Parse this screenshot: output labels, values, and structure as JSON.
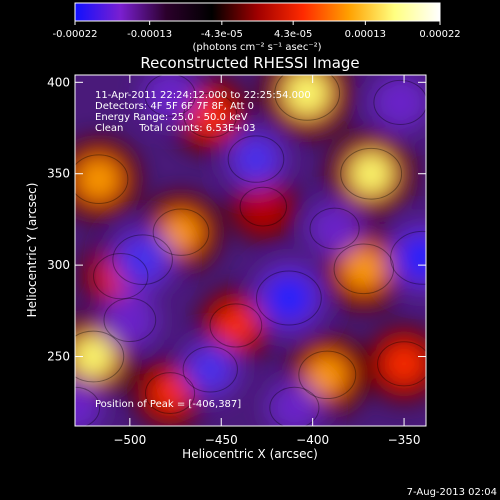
{
  "chart_data": {
    "type": "heatmap",
    "title": "Reconstructed RHESSI Image",
    "colorbar": {
      "range": [
        -0.00022,
        0.00022
      ],
      "tick_labels": [
        "-0.00022",
        "-0.00013",
        "-4.3e-05",
        "4.3e-05",
        "0.00013",
        "0.00022"
      ],
      "unit_label": "(photons cm⁻² s⁻¹ asec⁻²)",
      "colors": [
        "#1010ff",
        "#7a1fd0",
        "#2b002b",
        "#000000",
        "#a00000",
        "#ff2a00",
        "#ffa000",
        "#ffff80",
        "#ffffff"
      ]
    },
    "xlabel": "Heliocentric X (arcsec)",
    "ylabel": "Heliocentric Y (arcsec)",
    "xlim": [
      -530,
      -338
    ],
    "ylim": [
      212,
      404
    ],
    "xticks": [
      -500,
      -450,
      -400,
      -350
    ],
    "yticks": [
      250,
      300,
      350,
      400
    ],
    "xtick_labels": [
      "−500",
      "−450",
      "−400",
      "−350"
    ],
    "ytick_labels": [
      "250",
      "300",
      "350",
      "400"
    ],
    "annotations": [
      "11-Apr-2011 22:24:12.000 to 22:25:54.000",
      "Detectors: 4F 5F 6F 7F 8F, Att 0",
      "Energy Range: 25.0 - 50.0 keV",
      "Clean     Total counts: 6.53E+03"
    ],
    "peak_label": "Position of Peak = [-406,387]",
    "peak_position": [
      -406,
      387
    ],
    "sources": [
      {
        "x": -403,
        "y": 394,
        "value": 0.00022
      },
      {
        "x": -520,
        "y": 250,
        "value": 0.00019
      },
      {
        "x": -517,
        "y": 347,
        "value": 0.00017
      },
      {
        "x": -505,
        "y": 294,
        "value": 0.00014
      },
      {
        "x": -472,
        "y": 318,
        "value": 0.00015
      },
      {
        "x": -368,
        "y": 350,
        "value": 0.00019
      },
      {
        "x": -372,
        "y": 298,
        "value": 0.00018
      },
      {
        "x": -392,
        "y": 240,
        "value": 0.00016
      },
      {
        "x": -456,
        "y": 382,
        "value": 0.00013
      },
      {
        "x": -442,
        "y": 267,
        "value": 0.00012
      },
      {
        "x": -427,
        "y": 332,
        "value": 8e-05
      },
      {
        "x": -350,
        "y": 246,
        "value": 0.00013
      },
      {
        "x": -478,
        "y": 230,
        "value": 0.0001
      },
      {
        "x": -413,
        "y": 282,
        "value": -0.00022
      },
      {
        "x": -493,
        "y": 303,
        "value": -0.00018
      },
      {
        "x": -340,
        "y": 304,
        "value": -0.00021
      },
      {
        "x": -431,
        "y": 358,
        "value": -0.00015
      },
      {
        "x": -456,
        "y": 243,
        "value": -0.00014
      },
      {
        "x": -352,
        "y": 389,
        "value": -0.00013
      },
      {
        "x": -500,
        "y": 270,
        "value": -0.00012
      },
      {
        "x": -388,
        "y": 320,
        "value": -0.0001
      },
      {
        "x": -478,
        "y": 393,
        "value": -0.00011
      },
      {
        "x": -410,
        "y": 222,
        "value": -0.0001
      },
      {
        "x": -530,
        "y": 222,
        "value": -0.0001
      }
    ]
  },
  "footer": {
    "date": "7-Aug-2013 02:04"
  }
}
